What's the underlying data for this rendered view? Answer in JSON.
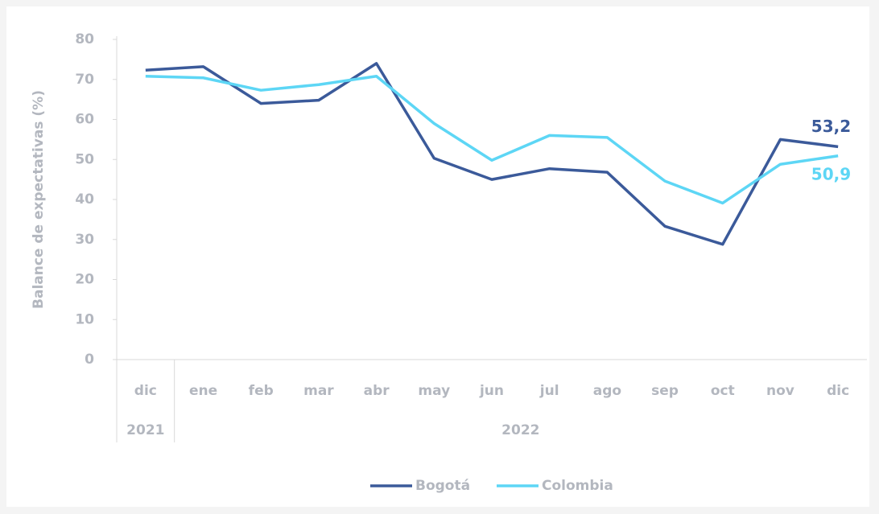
{
  "chart_data": {
    "type": "line",
    "y_label": "Balance de expectativas (%)",
    "categories": [
      "dic",
      "ene",
      "feb",
      "mar",
      "abr",
      "may",
      "jun",
      "jul",
      "ago",
      "sep",
      "oct",
      "nov",
      "dic"
    ],
    "category_groups": [
      {
        "label": "2021",
        "span": 1
      },
      {
        "label": "2022",
        "span": 12
      }
    ],
    "series": [
      {
        "name": "Bogotá",
        "color": "#3b5a9a",
        "values": [
          72.3,
          73.2,
          64,
          64.8,
          74,
          50.3,
          45,
          47.7,
          46.8,
          33.3,
          28.8,
          55,
          53.2
        ],
        "value_labels": [
          null,
          null,
          null,
          null,
          null,
          null,
          null,
          null,
          null,
          null,
          null,
          null,
          "53,2"
        ]
      },
      {
        "name": "Colombia",
        "color": "#5dd6f5",
        "values": [
          70.8,
          70.4,
          67.3,
          68.7,
          70.8,
          59,
          49.8,
          56,
          55.5,
          44.6,
          39.1,
          48.8,
          50.9
        ],
        "value_labels": [
          null,
          null,
          null,
          null,
          null,
          null,
          null,
          null,
          null,
          null,
          null,
          null,
          "50,9"
        ]
      }
    ],
    "ylim": [
      0,
      80
    ],
    "yticks": [
      0,
      10,
      20,
      30,
      40,
      50,
      60,
      70,
      80
    ],
    "legend": "bottom"
  }
}
